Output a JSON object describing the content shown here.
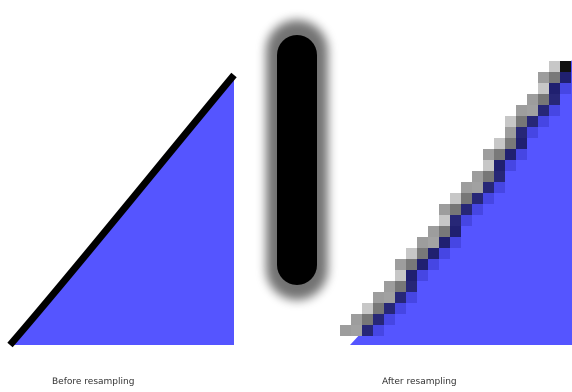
{
  "captions": {
    "before": "Before resampling",
    "after": "After resampling"
  },
  "colors": {
    "fill": "#5555ff",
    "stroke": "#000000",
    "background": "#ffffff"
  }
}
